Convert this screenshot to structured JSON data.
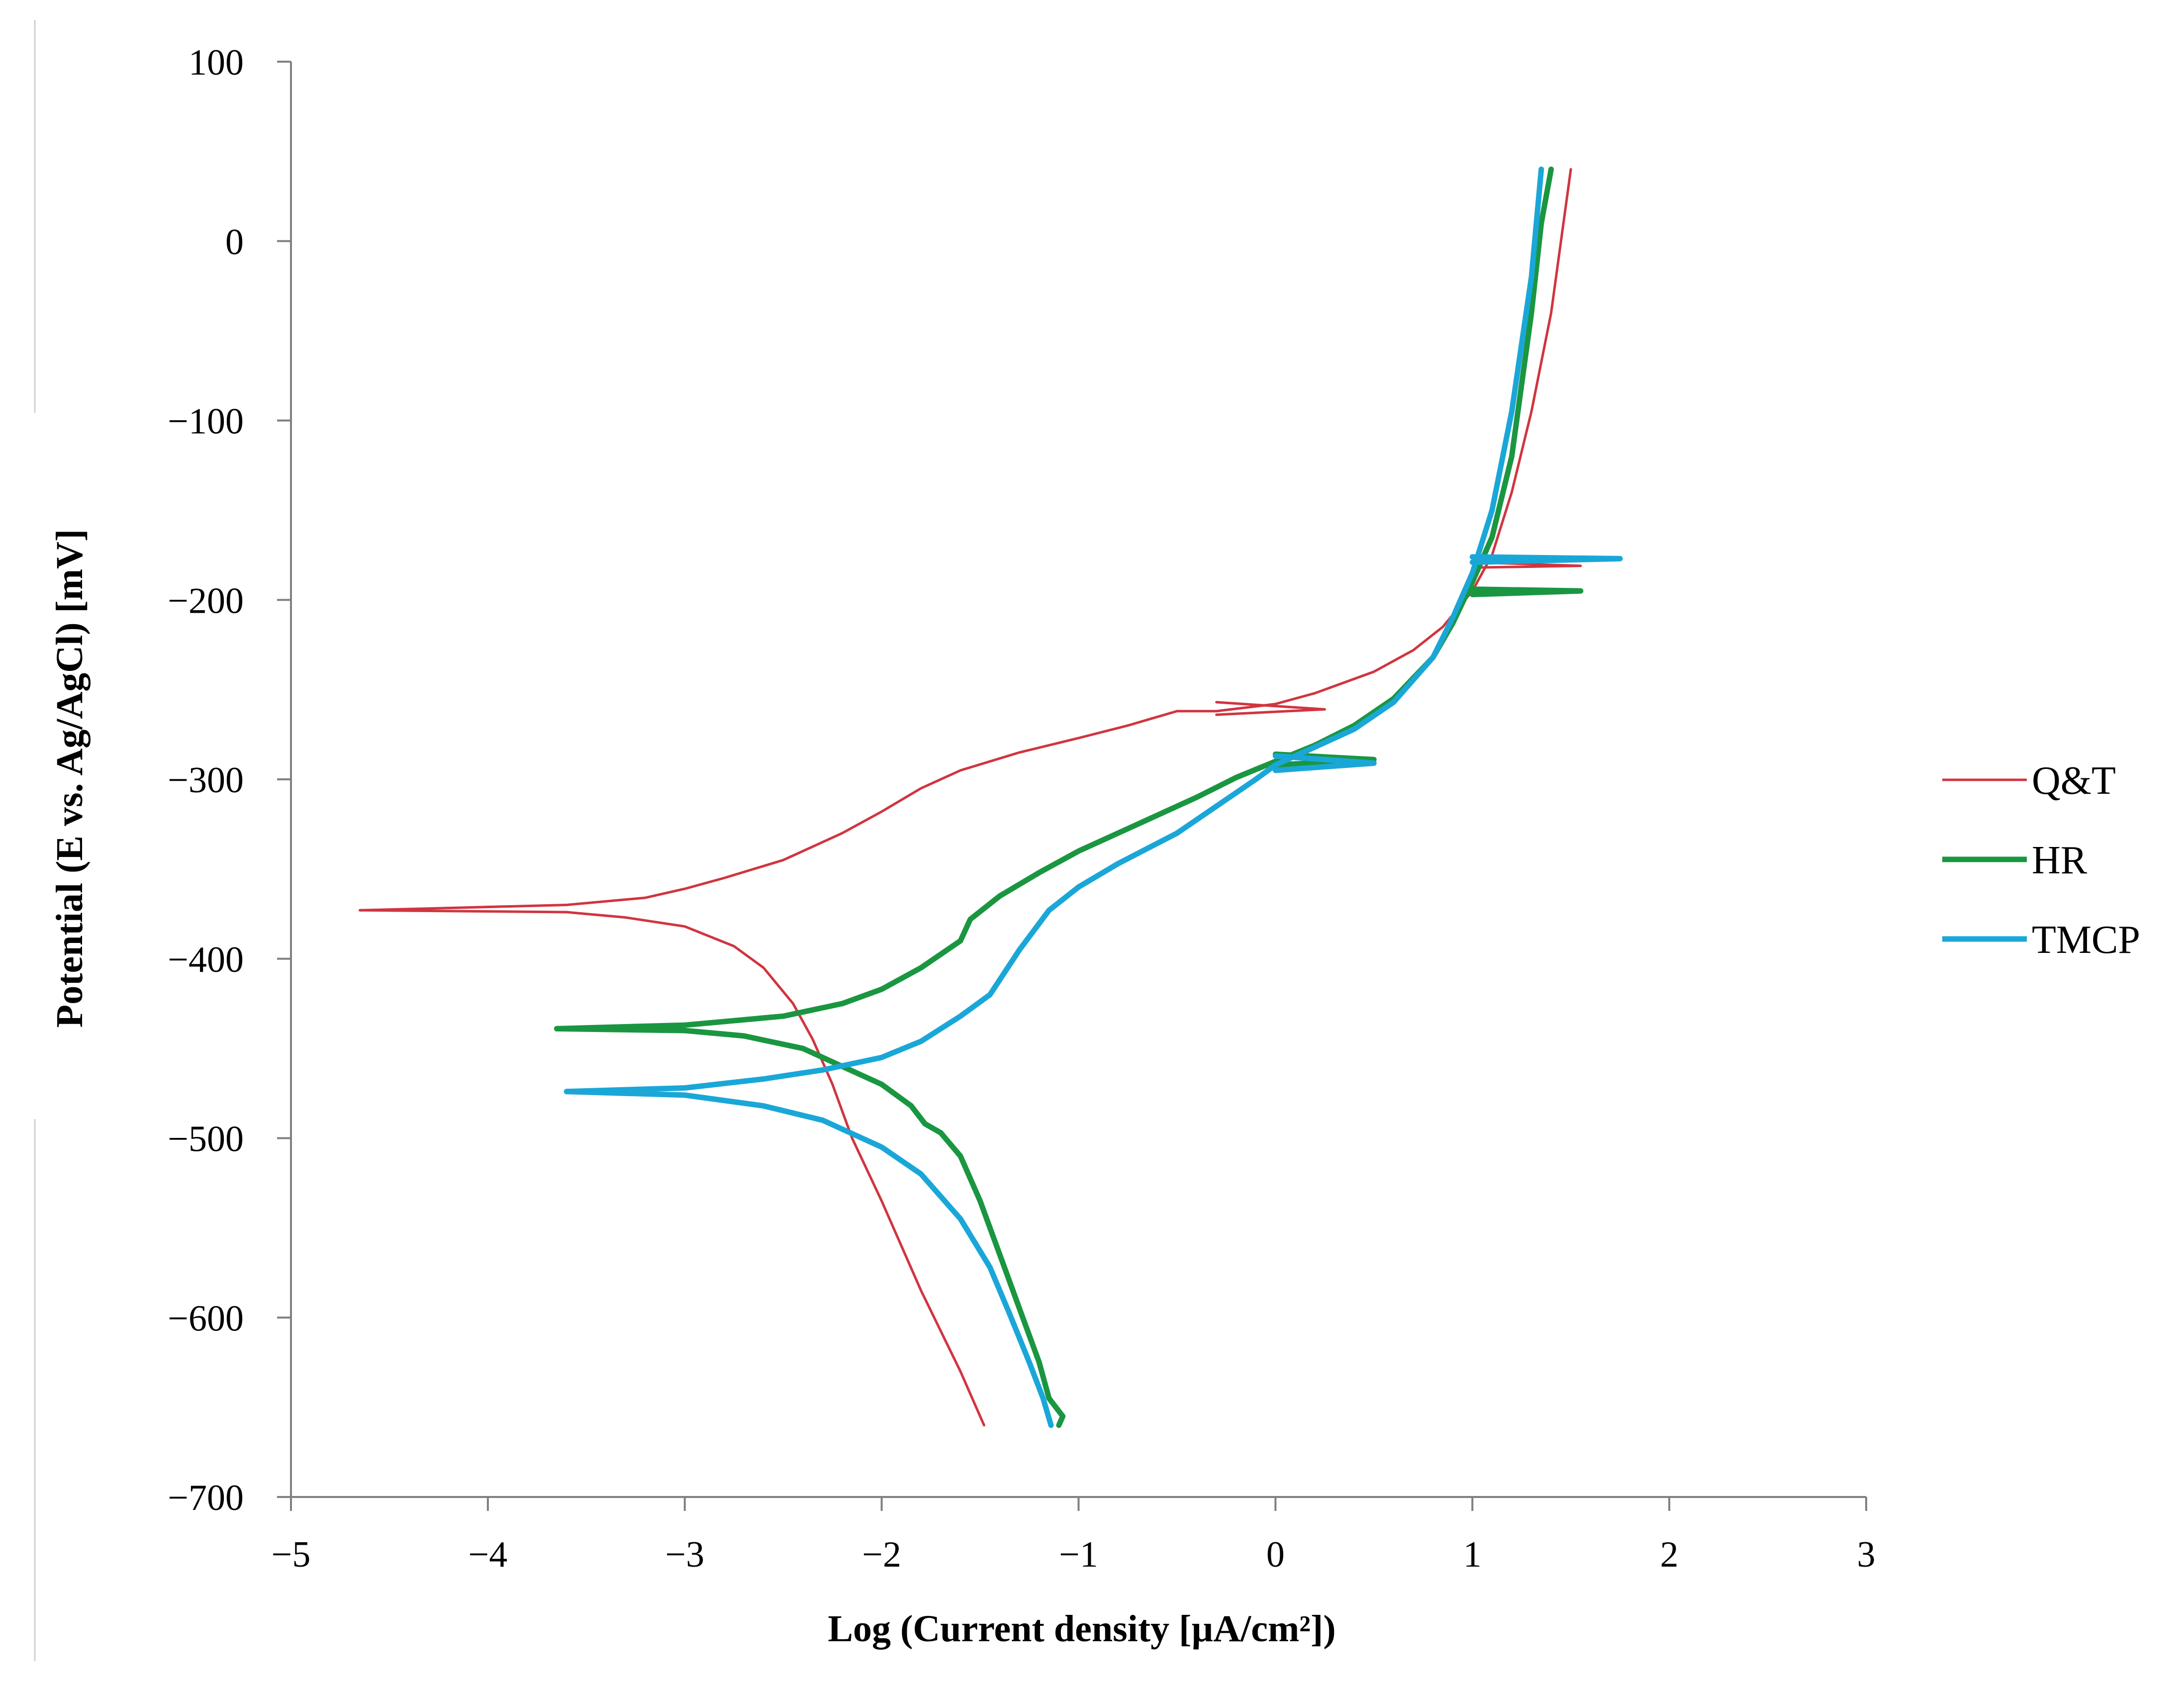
{
  "chart_data": {
    "type": "line",
    "xlabel": "Log (Current  density [µA/cm²])",
    "ylabel": "Potential (E vs. Ag/AgCl) [mV]",
    "xlim": [
      -5,
      3
    ],
    "ylim": [
      -700,
      100
    ],
    "x_ticks": [
      -5,
      -4,
      -3,
      -2,
      -1,
      0,
      1,
      2,
      3
    ],
    "y_ticks": [
      100,
      0,
      -100,
      -200,
      -300,
      -400,
      -500,
      -600,
      -700
    ],
    "x_tick_labels": [
      "−5",
      "−4",
      "−3",
      "−2",
      "−1",
      "0",
      "1",
      "2",
      "3"
    ],
    "y_tick_labels": [
      "100",
      "0",
      "−100",
      "−200",
      "−300",
      "−400",
      "−500",
      "−600",
      "−700"
    ],
    "grid": false,
    "legend_position": "right",
    "series": [
      {
        "name": "Q&T",
        "color": "#d0353f",
        "anodic": [
          [
            -4.65,
            -373
          ],
          [
            -3.6,
            -370
          ],
          [
            -3.2,
            -366
          ],
          [
            -3.0,
            -361
          ],
          [
            -2.8,
            -355
          ],
          [
            -2.5,
            -345
          ],
          [
            -2.2,
            -330
          ],
          [
            -2.0,
            -318
          ],
          [
            -1.8,
            -305
          ],
          [
            -1.6,
            -295
          ],
          [
            -1.3,
            -285
          ],
          [
            -1.0,
            -277
          ],
          [
            -0.75,
            -270
          ],
          [
            -0.5,
            -262
          ],
          [
            -0.3,
            -262
          ],
          [
            0.0,
            -258
          ],
          [
            0.2,
            -252
          ],
          [
            0.5,
            -240
          ],
          [
            0.7,
            -228
          ],
          [
            0.85,
            -215
          ],
          [
            1.0,
            -195
          ],
          [
            1.1,
            -175
          ],
          [
            1.2,
            -140
          ],
          [
            1.3,
            -95
          ],
          [
            1.4,
            -40
          ],
          [
            1.45,
            0
          ],
          [
            1.5,
            40
          ]
        ],
        "cathodic": [
          [
            -4.65,
            -373
          ],
          [
            -3.6,
            -374
          ],
          [
            -3.3,
            -377
          ],
          [
            -3.0,
            -382
          ],
          [
            -2.75,
            -393
          ],
          [
            -2.6,
            -405
          ],
          [
            -2.45,
            -425
          ],
          [
            -2.35,
            -445
          ],
          [
            -2.25,
            -470
          ],
          [
            -2.15,
            -500
          ],
          [
            -2.0,
            -535
          ],
          [
            -1.8,
            -585
          ],
          [
            -1.6,
            -630
          ],
          [
            -1.48,
            -660
          ]
        ],
        "spike_hi": [
          [
            -0.3,
            -257
          ],
          [
            0.25,
            -261
          ],
          [
            -0.3,
            -264
          ]
        ],
        "spike_lo": [
          [
            1.0,
            -182
          ],
          [
            1.55,
            -181
          ],
          [
            1.0,
            -179
          ]
        ]
      },
      {
        "name": "HR",
        "color": "#1a9641",
        "anodic": [
          [
            -3.65,
            -439
          ],
          [
            -3.0,
            -437
          ],
          [
            -2.5,
            -432
          ],
          [
            -2.2,
            -425
          ],
          [
            -2.0,
            -417
          ],
          [
            -1.8,
            -405
          ],
          [
            -1.6,
            -390
          ],
          [
            -1.55,
            -378
          ],
          [
            -1.4,
            -365
          ],
          [
            -1.2,
            -352
          ],
          [
            -1.0,
            -340
          ],
          [
            -0.7,
            -325
          ],
          [
            -0.4,
            -310
          ],
          [
            -0.2,
            -299
          ],
          [
            0.0,
            -290
          ],
          [
            0.2,
            -281
          ],
          [
            0.4,
            -270
          ],
          [
            0.6,
            -255
          ],
          [
            0.8,
            -232
          ],
          [
            0.9,
            -213
          ],
          [
            1.0,
            -190
          ],
          [
            1.1,
            -165
          ],
          [
            1.2,
            -120
          ],
          [
            1.3,
            -40
          ],
          [
            1.35,
            10
          ],
          [
            1.4,
            40
          ]
        ],
        "cathodic": [
          [
            -3.65,
            -439
          ],
          [
            -3.0,
            -440
          ],
          [
            -2.7,
            -443
          ],
          [
            -2.4,
            -450
          ],
          [
            -2.2,
            -460
          ],
          [
            -2.0,
            -470
          ],
          [
            -1.85,
            -482
          ],
          [
            -1.78,
            -492
          ],
          [
            -1.7,
            -497
          ],
          [
            -1.6,
            -510
          ],
          [
            -1.5,
            -535
          ],
          [
            -1.4,
            -565
          ],
          [
            -1.3,
            -595
          ],
          [
            -1.2,
            -625
          ],
          [
            -1.15,
            -645
          ],
          [
            -1.08,
            -655
          ],
          [
            -1.1,
            -660
          ]
        ],
        "spike_hi": [
          [
            0.0,
            -286
          ],
          [
            0.5,
            -289
          ],
          [
            0.0,
            -292
          ]
        ],
        "spike_lo": [
          [
            1.0,
            -194
          ],
          [
            1.55,
            -195
          ],
          [
            1.0,
            -197
          ]
        ]
      },
      {
        "name": "TMCP",
        "color": "#1aa7d8",
        "anodic": [
          [
            -3.6,
            -474
          ],
          [
            -3.0,
            -472
          ],
          [
            -2.6,
            -467
          ],
          [
            -2.3,
            -462
          ],
          [
            -2.0,
            -455
          ],
          [
            -1.8,
            -446
          ],
          [
            -1.6,
            -432
          ],
          [
            -1.45,
            -420
          ],
          [
            -1.3,
            -395
          ],
          [
            -1.15,
            -373
          ],
          [
            -1.0,
            -360
          ],
          [
            -0.8,
            -347
          ],
          [
            -0.5,
            -330
          ],
          [
            -0.3,
            -315
          ],
          [
            -0.1,
            -300
          ],
          [
            0.0,
            -292
          ],
          [
            0.2,
            -282
          ],
          [
            0.4,
            -272
          ],
          [
            0.6,
            -257
          ],
          [
            0.8,
            -232
          ],
          [
            0.9,
            -210
          ],
          [
            1.0,
            -185
          ],
          [
            1.1,
            -150
          ],
          [
            1.2,
            -95
          ],
          [
            1.3,
            -20
          ],
          [
            1.35,
            40
          ]
        ],
        "cathodic": [
          [
            -3.6,
            -474
          ],
          [
            -3.0,
            -476
          ],
          [
            -2.6,
            -482
          ],
          [
            -2.3,
            -490
          ],
          [
            -2.0,
            -505
          ],
          [
            -1.8,
            -520
          ],
          [
            -1.6,
            -545
          ],
          [
            -1.45,
            -572
          ],
          [
            -1.35,
            -598
          ],
          [
            -1.25,
            -625
          ],
          [
            -1.18,
            -645
          ],
          [
            -1.14,
            -660
          ]
        ],
        "spike_hi": [
          [
            0.0,
            -287
          ],
          [
            0.5,
            -291
          ],
          [
            0.0,
            -295
          ]
        ],
        "spike_lo": [
          [
            1.0,
            -176
          ],
          [
            1.75,
            -177
          ],
          [
            1.0,
            -179
          ]
        ]
      }
    ]
  }
}
